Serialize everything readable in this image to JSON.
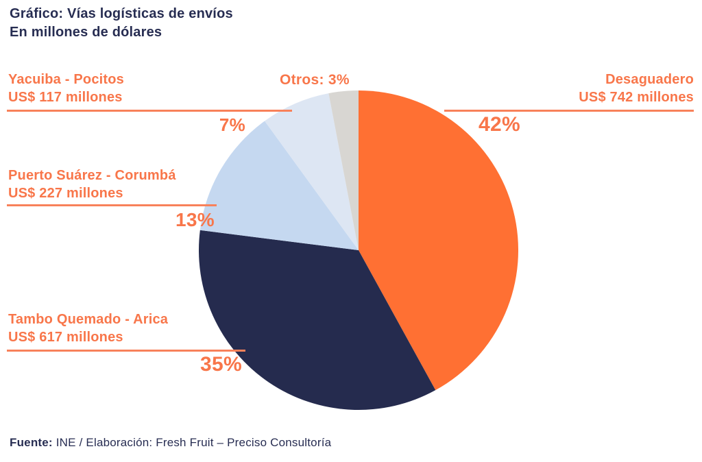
{
  "title": {
    "prefix": "Gráfico:",
    "main": " Vías logísticas de envíos",
    "subtitle": "En millones de dólares"
  },
  "source": {
    "prefix": "Fuente:",
    "text": " INE / Elaboración: Fresh Fruit – Preciso Consultoría"
  },
  "colors": {
    "text_navy": "#272D52",
    "accent_orange_text": "#F8764A",
    "leader_line_orange": "#F8815A",
    "background": "#FFFFFF"
  },
  "chart_data": {
    "type": "pie",
    "title": "Vías logísticas de envíos",
    "subtitle": "En millones de dólares",
    "unit": "US$ millones",
    "direction": "clockwise",
    "start_angle_deg_from_top": 0,
    "legend_position": "callout-labels",
    "slices": [
      {
        "label": "Desaguadero",
        "value_musd": 742,
        "pct": 42,
        "color": "#FF7033",
        "name_label": "Desaguadero",
        "value_label": "US$ 742 millones",
        "pct_label": "42%"
      },
      {
        "label": "Tambo Quemado - Arica",
        "value_musd": 617,
        "pct": 35,
        "color": "#252B4E",
        "name_label": "Tambo Quemado - Arica",
        "value_label": "US$ 617 millones",
        "pct_label": "35%"
      },
      {
        "label": "Puerto Suárez - Corumbá",
        "value_musd": 227,
        "pct": 13,
        "color": "#C5D8F0",
        "name_label": "Puerto Suárez - Corumbá",
        "value_label": "US$ 227 millones",
        "pct_label": "13%"
      },
      {
        "label": "Yacuiba - Pocitos",
        "value_musd": 117,
        "pct": 7,
        "color": "#DDE6F3",
        "name_label": "Yacuiba - Pocitos",
        "value_label": "US$ 117 millones",
        "pct_label": "7%"
      },
      {
        "label": "Otros",
        "pct": 3,
        "color": "#D8D6D2",
        "combined_label": "Otros: 3%"
      }
    ]
  }
}
